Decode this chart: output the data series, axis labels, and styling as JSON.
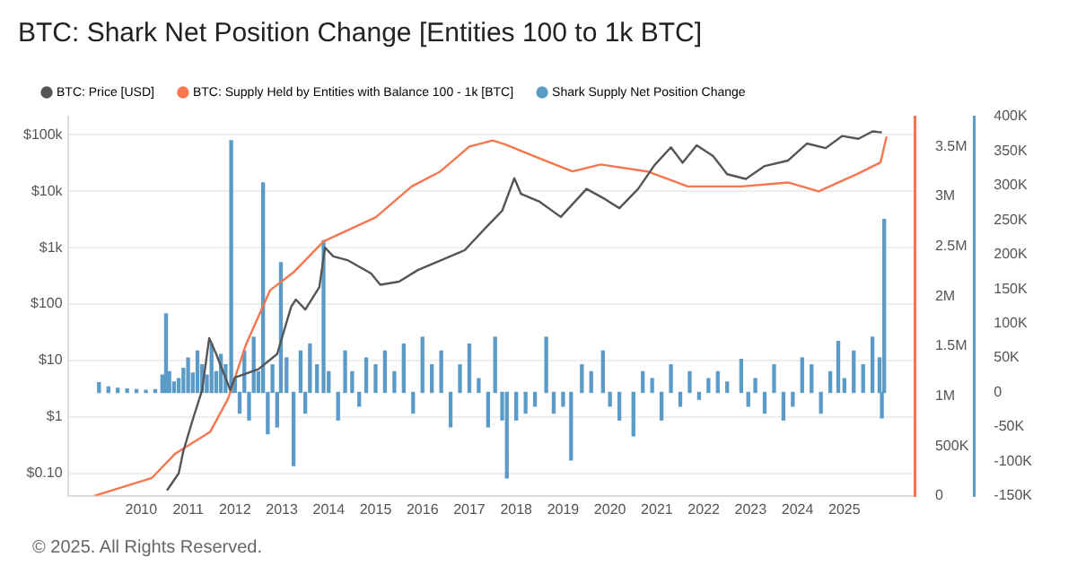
{
  "chart_data": {
    "type": "line",
    "title": "BTC: Shark Net Position Change [Entities 100 to 1k BTC]",
    "annotations": [
      "© 2025. All Rights Reserved."
    ],
    "legend": "top left",
    "grid": "y",
    "log": "y",
    "marker": "none",
    "line_style": "solid",
    "xlim": [
      2009.0,
      2025.95
    ],
    "xticks": [
      2010,
      2011,
      2012,
      2013,
      2014,
      2015,
      2016,
      2017,
      2018,
      2019,
      2020,
      2021,
      2022,
      2023,
      2024,
      2025
    ],
    "ylim": [
      0.04,
      210000
    ],
    "yticks": [
      {
        "value": 0.1,
        "label": "$0.10"
      },
      {
        "value": 1,
        "label": "$1"
      },
      {
        "value": 10,
        "label": "$10"
      },
      {
        "value": 100,
        "label": "$100"
      },
      {
        "value": 1000,
        "label": "$1k"
      },
      {
        "value": 10000,
        "label": "$10k"
      },
      {
        "value": 100000,
        "label": "$100k"
      }
    ],
    "y2lim": [
      0,
      3800000
    ],
    "y2ticks": [
      0,
      {
        "value": 500000,
        "label": "500K"
      },
      {
        "value": 1000000,
        "label": "1M"
      },
      {
        "value": 1500000,
        "label": "1.5M"
      },
      {
        "value": 2000000,
        "label": "2M"
      },
      {
        "value": 2500000,
        "label": "2.5M"
      },
      {
        "value": 3000000,
        "label": "3M"
      },
      {
        "value": 3500000,
        "label": "3.5M"
      }
    ],
    "y3lim": [
      -150000,
      400000
    ],
    "y3ticks": [
      {
        "value": -150000,
        "label": "-150K"
      },
      {
        "value": -100000,
        "label": "-100K"
      },
      {
        "value": -50000,
        "label": "-50K"
      },
      0,
      {
        "value": 50000,
        "label": "50K"
      },
      {
        "value": 100000,
        "label": "100K"
      },
      {
        "value": 150000,
        "label": "150K"
      },
      {
        "value": 200000,
        "label": "200K"
      },
      {
        "value": 250000,
        "label": "250K"
      },
      {
        "value": 300000,
        "label": "300K"
      },
      {
        "value": 350000,
        "label": "350K"
      },
      {
        "value": 400000,
        "label": "400K"
      }
    ],
    "series": [
      {
        "name": "BTC: Price [USD]",
        "axis": "y",
        "color": "#555555",
        "x": [
          2010.55,
          2010.8,
          2010.9,
          2011.1,
          2011.3,
          2011.45,
          2011.6,
          2011.9,
          2012.0,
          2012.5,
          2012.9,
          2013.2,
          2013.3,
          2013.5,
          2013.8,
          2013.92,
          2014.1,
          2014.4,
          2014.9,
          2015.1,
          2015.5,
          2015.9,
          2016.5,
          2016.9,
          2017.4,
          2017.7,
          2017.96,
          2018.1,
          2018.5,
          2018.95,
          2019.5,
          2019.9,
          2020.2,
          2020.6,
          2020.95,
          2021.3,
          2021.55,
          2021.85,
          2022.2,
          2022.5,
          2022.9,
          2023.3,
          2023.8,
          2024.2,
          2024.6,
          2024.95,
          2025.3,
          2025.6,
          2025.8
        ],
        "values": [
          0.05,
          0.1,
          0.25,
          0.9,
          3,
          25,
          13,
          3,
          5,
          7,
          13,
          90,
          120,
          80,
          200,
          1000,
          700,
          600,
          350,
          220,
          250,
          400,
          650,
          900,
          2500,
          4500,
          17000,
          9000,
          6500,
          3500,
          11000,
          7200,
          5000,
          11000,
          29000,
          60000,
          32000,
          65000,
          42000,
          20000,
          16500,
          28000,
          35000,
          70000,
          58000,
          95000,
          85000,
          115000,
          110000
        ]
      },
      {
        "name": "BTC: Supply Held by Entities with Balance 100 - 1k [BTC]",
        "axis": "y2",
        "color": "#f7764e",
        "x": [
          2009.0,
          2010.23,
          2010.72,
          2011.47,
          2011.85,
          2012.23,
          2012.75,
          2013.25,
          2013.89,
          2015.0,
          2015.77,
          2016.38,
          2017.0,
          2017.5,
          2017.77,
          2018.5,
          2019.2,
          2019.8,
          2020.8,
          2021.66,
          2022.8,
          2023.8,
          2024.45,
          2025.3,
          2025.77,
          2025.9
        ],
        "values": [
          0,
          180000,
          420000,
          640000,
          970000,
          1510000,
          2060000,
          2240000,
          2550000,
          2790000,
          3100000,
          3250000,
          3500000,
          3560000,
          3520000,
          3380000,
          3250000,
          3320000,
          3250000,
          3100000,
          3100000,
          3140000,
          3050000,
          3230000,
          3340000,
          3600000
        ]
      },
      {
        "name": "Shark Supply Net Position Change",
        "type": "bar",
        "axis": "y3",
        "color": "#5b9bc8",
        "x": [
          2009.1,
          2009.3,
          2009.5,
          2009.7,
          2009.9,
          2010.1,
          2010.3,
          2010.45,
          2010.53,
          2010.6,
          2010.7,
          2010.8,
          2010.9,
          2011.0,
          2011.1,
          2011.2,
          2011.3,
          2011.4,
          2011.5,
          2011.6,
          2011.7,
          2011.8,
          2011.92,
          2012.0,
          2012.1,
          2012.2,
          2012.3,
          2012.4,
          2012.5,
          2012.6,
          2012.7,
          2012.8,
          2012.9,
          2012.98,
          2013.1,
          2013.25,
          2013.4,
          2013.5,
          2013.6,
          2013.75,
          2013.89,
          2014.0,
          2014.2,
          2014.35,
          2014.5,
          2014.65,
          2014.8,
          2015.0,
          2015.2,
          2015.4,
          2015.6,
          2015.8,
          2016.0,
          2016.2,
          2016.4,
          2016.6,
          2016.8,
          2017.0,
          2017.2,
          2017.4,
          2017.55,
          2017.7,
          2017.8,
          2018.0,
          2018.2,
          2018.4,
          2018.64,
          2018.8,
          2019.0,
          2019.17,
          2019.4,
          2019.6,
          2019.85,
          2020.0,
          2020.2,
          2020.5,
          2020.7,
          2020.9,
          2021.1,
          2021.3,
          2021.5,
          2021.7,
          2021.9,
          2022.1,
          2022.3,
          2022.5,
          2022.8,
          2022.95,
          2023.1,
          2023.3,
          2023.5,
          2023.7,
          2023.9,
          2024.1,
          2024.3,
          2024.5,
          2024.7,
          2024.87,
          2025.0,
          2025.2,
          2025.4,
          2025.6,
          2025.75,
          2025.8,
          2025.85
        ],
        "values": [
          14000,
          8000,
          6000,
          5000,
          4000,
          3000,
          4000,
          25000,
          114000,
          30000,
          15000,
          20000,
          35000,
          50000,
          28000,
          60000,
          40000,
          25000,
          70000,
          30000,
          55000,
          40000,
          365000,
          20000,
          -30000,
          60000,
          -40000,
          80000,
          30000,
          304000,
          -60000,
          40000,
          -50000,
          188000,
          50000,
          -106000,
          60000,
          -30000,
          70000,
          40000,
          220000,
          30000,
          -40000,
          60000,
          30000,
          -20000,
          50000,
          40000,
          60000,
          30000,
          70000,
          -30000,
          80000,
          40000,
          60000,
          -50000,
          40000,
          70000,
          20000,
          -50000,
          80000,
          -40000,
          -124000,
          -40000,
          -30000,
          -20000,
          80000,
          -30000,
          -20000,
          -98000,
          40000,
          30000,
          60000,
          -20000,
          -40000,
          -63000,
          30000,
          20000,
          -40000,
          40000,
          -20000,
          30000,
          -10000,
          20000,
          30000,
          15000,
          48000,
          -20000,
          20000,
          -30000,
          40000,
          -40000,
          -20000,
          50000,
          40000,
          -30000,
          30000,
          74000,
          20000,
          60000,
          40000,
          80000,
          50000,
          -37000,
          251000
        ]
      }
    ]
  }
}
